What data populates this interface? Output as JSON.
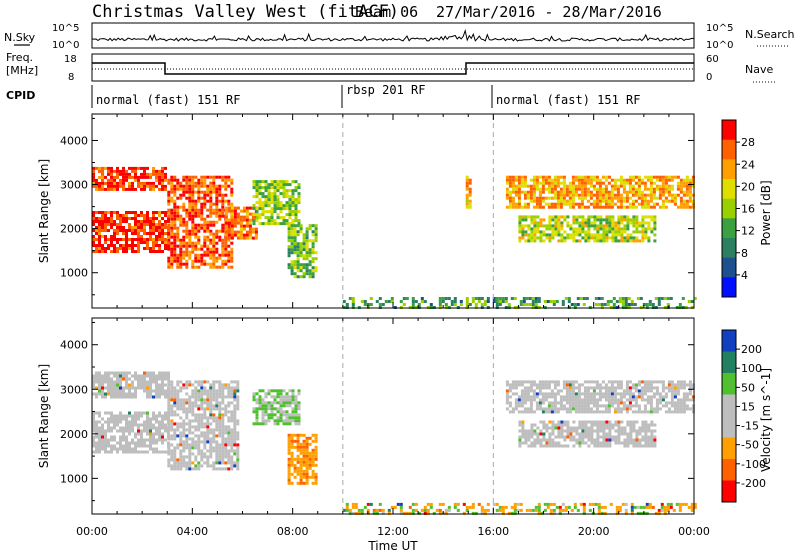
{
  "header": {
    "title": "Christmas Valley West (fitACF)",
    "beam": "Beam 06",
    "date_range": "27/Mar/2016 - 28/Mar/2016"
  },
  "strip": {
    "nsky_label": "N.Sky",
    "nsearch_label": "N.Search",
    "nsky_ticks": [
      "10^5",
      "10^0"
    ],
    "freq_label_line1": "Freq.",
    "freq_label_line2": "[MHz]",
    "freq_ticks": [
      "18",
      "8"
    ],
    "nave_label": "Nave",
    "nave_ticks": [
      "60",
      "0"
    ],
    "cpid_label": "CPID",
    "cpid_segments": [
      {
        "label": "normal (fast) 151 RF",
        "start_h": 0,
        "end_h": 10
      },
      {
        "label": "rbsp 201 RF",
        "start_h": 10,
        "end_h": 16
      },
      {
        "label": "normal (fast) 151 RF",
        "start_h": 16,
        "end_h": 24
      }
    ]
  },
  "chart_data": [
    {
      "type": "heatmap",
      "title": "Power",
      "ylabel": "Slant Range [km]",
      "xlim_hours": [
        0,
        24
      ],
      "ylim": [
        200,
        4600
      ],
      "yticks": [
        1000,
        2000,
        3000,
        4000
      ],
      "colorbar": {
        "label": "Power [dB]",
        "ticks": [
          "28",
          "24",
          "20",
          "16",
          "12",
          "8",
          "4"
        ],
        "colors": [
          "#ff0000",
          "#ff6000",
          "#ffa000",
          "#dede00",
          "#9ad000",
          "#3aa040",
          "#2a8060",
          "#1e5090",
          "#0010ff"
        ]
      },
      "regions": [
        {
          "h0": 0.0,
          "h1": 2.9,
          "r0": 2900,
          "r1": 3400,
          "level": 0.95
        },
        {
          "h0": 0.0,
          "h1": 3.1,
          "r0": 1500,
          "r1": 2400,
          "level": 0.97
        },
        {
          "h0": 3.0,
          "h1": 5.6,
          "r0": 1100,
          "r1": 3200,
          "level": 0.9
        },
        {
          "h0": 5.3,
          "h1": 6.6,
          "r0": 1800,
          "r1": 2500,
          "level": 0.85
        },
        {
          "h0": 6.4,
          "h1": 8.2,
          "r0": 2100,
          "r1": 3100,
          "level": 0.5
        },
        {
          "h0": 7.8,
          "h1": 8.9,
          "r0": 900,
          "r1": 2100,
          "level": 0.45
        },
        {
          "h0": 14.9,
          "h1": 15.1,
          "r0": 2500,
          "r1": 3200,
          "level": 0.7
        },
        {
          "h0": 16.5,
          "h1": 24.0,
          "r0": 2500,
          "r1": 3200,
          "level": 0.75
        },
        {
          "h0": 17.0,
          "h1": 22.5,
          "r0": 1700,
          "r1": 2300,
          "level": 0.55
        },
        {
          "h0": 10.0,
          "h1": 24.0,
          "r0": 200,
          "r1": 450,
          "level": 0.35
        }
      ]
    },
    {
      "type": "heatmap",
      "title": "Velocity",
      "ylabel": "Slant Range [km]",
      "xlabel": "Time UT",
      "xlim_hours": [
        0,
        24
      ],
      "ylim": [
        200,
        4600
      ],
      "yticks": [
        1000,
        2000,
        3000,
        4000
      ],
      "xticks": [
        "00:00",
        "04:00",
        "08:00",
        "12:00",
        "16:00",
        "20:00",
        "00:00"
      ],
      "colorbar": {
        "label": "Velocity [m s^-1]",
        "ticks": [
          "200",
          "100",
          "50",
          "15",
          "-15",
          "-50",
          "-100",
          "-200"
        ],
        "colors": [
          "#1040c0",
          "#208060",
          "#50c030",
          "#bebebe",
          "#bebebe",
          "#ffa000",
          "#ff6000",
          "#ff0000"
        ]
      },
      "regions": [
        {
          "h0": 0.0,
          "h1": 3.0,
          "r0": 2800,
          "r1": 3400,
          "kind": "ground"
        },
        {
          "h0": 0.0,
          "h1": 3.1,
          "r0": 1600,
          "r1": 2500,
          "kind": "ground"
        },
        {
          "h0": 3.0,
          "h1": 5.8,
          "r0": 1200,
          "r1": 3200,
          "kind": "ground"
        },
        {
          "h0": 6.4,
          "h1": 8.2,
          "r0": 2200,
          "r1": 3000,
          "kind": "pos"
        },
        {
          "h0": 7.8,
          "h1": 8.9,
          "r0": 900,
          "r1": 2000,
          "kind": "neg"
        },
        {
          "h0": 16.5,
          "h1": 24.0,
          "r0": 2500,
          "r1": 3200,
          "kind": "ground"
        },
        {
          "h0": 17.0,
          "h1": 22.5,
          "r0": 1700,
          "r1": 2300,
          "kind": "ground"
        },
        {
          "h0": 10.0,
          "h1": 24.0,
          "r0": 200,
          "r1": 450,
          "kind": "mixed"
        }
      ]
    }
  ]
}
